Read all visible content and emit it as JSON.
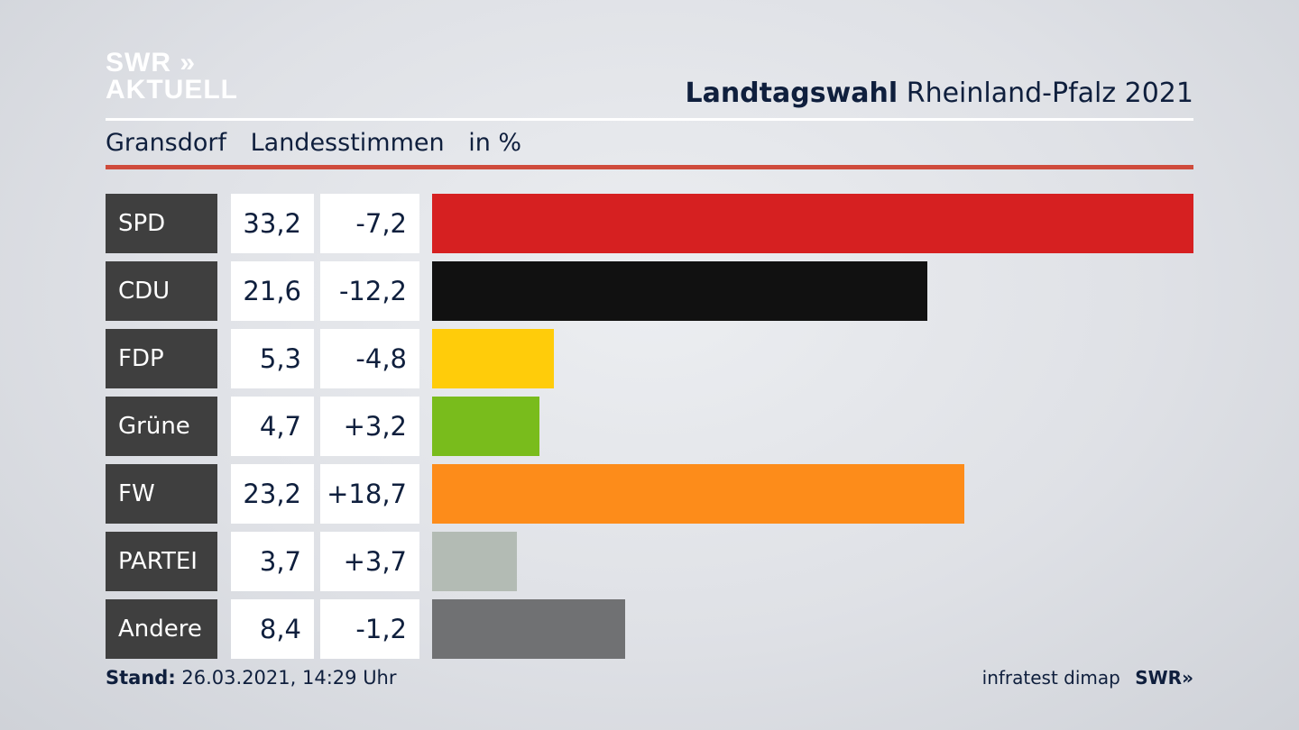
{
  "brand": {
    "line1": "SWR »",
    "line2": "AKTUELL"
  },
  "title": {
    "bold": "Landtagswahl",
    "rest": "Rheinland-Pfalz 2021"
  },
  "subtitle": {
    "place": "Gransdorf",
    "measure": "Landesstimmen",
    "unit": "in %"
  },
  "footer": {
    "stand_label": "Stand:",
    "stand_value": "26.03.2021, 14:29 Uhr",
    "source": "infratest dimap",
    "source_brand": "SWR»"
  },
  "chart_data": {
    "type": "bar",
    "orientation": "horizontal",
    "title": "Landtagswahl Rheinland-Pfalz 2021",
    "subtitle": "Gransdorf Landesstimmen in %",
    "categories": [
      "SPD",
      "CDU",
      "FDP",
      "Grüne",
      "FW",
      "PARTEI",
      "Andere"
    ],
    "values": [
      33.2,
      21.6,
      5.3,
      4.7,
      23.2,
      3.7,
      8.4
    ],
    "labels": [
      "33,2",
      "21,6",
      "5,3",
      "4,7",
      "23,2",
      "3,7",
      "8,4"
    ],
    "changes": [
      "-7,2",
      "-12,2",
      "-4,8",
      "+3,2",
      "+18,7",
      "+3,7",
      "-1,2"
    ],
    "colors": [
      "#d62021",
      "#111111",
      "#ffcc0a",
      "#79bc1c",
      "#fd8c1a",
      "#b3bbb4",
      "#707173"
    ],
    "xlim": [
      0,
      33.2
    ],
    "grid": false,
    "legend": "none"
  }
}
